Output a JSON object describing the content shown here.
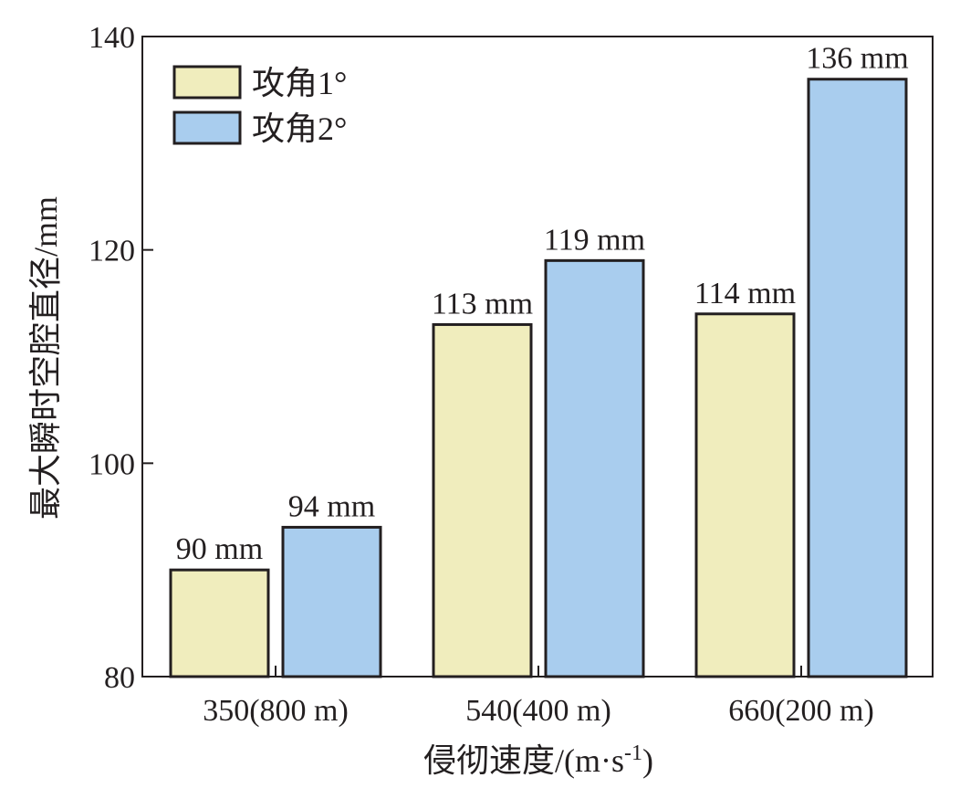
{
  "chart_data": {
    "type": "bar",
    "title": "",
    "xlabel": "侵彻速度/(m·s-1)",
    "xlabel_parts": {
      "main": "侵彻速度/(m·s",
      "sup": "-1",
      "close": ")"
    },
    "ylabel": "最大瞬时空腔直径/mm",
    "ylim": [
      80,
      140
    ],
    "yticks": [
      80,
      100,
      120,
      140
    ],
    "categories": [
      "350(800 m)",
      "540(400 m)",
      "660(200 m)"
    ],
    "series": [
      {
        "name": "攻角1°",
        "values": [
          90,
          113,
          114
        ],
        "labels": [
          "90 mm",
          "113 mm",
          "114 mm"
        ],
        "color": "#f0edbd"
      },
      {
        "name": "攻角2°",
        "values": [
          94,
          119,
          136
        ],
        "labels": [
          "94 mm",
          "119 mm",
          "136 mm"
        ],
        "color": "#a9cdee"
      }
    ],
    "legend_position": "top-left",
    "grid": false
  }
}
